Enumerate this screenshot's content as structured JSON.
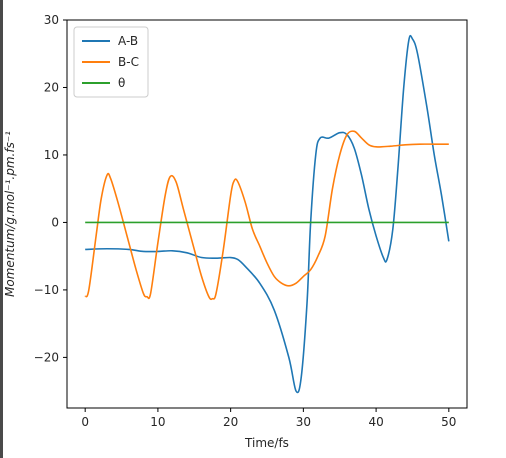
{
  "chart_data": {
    "type": "line",
    "title": "",
    "xlabel": "Time/fs",
    "ylabel": "Momentum/g.mol⁻¹.pm.fs⁻¹",
    "xlim": [
      -2.5,
      52.5
    ],
    "ylim": [
      -27.5,
      30
    ],
    "xticks": [
      0,
      10,
      20,
      30,
      40,
      50
    ],
    "yticks": [
      -20,
      -10,
      0,
      10,
      20,
      30
    ],
    "ytick_labels": [
      "−20",
      "−10",
      "0",
      "10",
      "20",
      "30"
    ],
    "grid": false,
    "legend_position": "top-left",
    "series": [
      {
        "name": "A-B",
        "color": "#1f77b4",
        "points": [
          [
            0,
            -4.0
          ],
          [
            3,
            -3.9
          ],
          [
            6,
            -4.0
          ],
          [
            8,
            -4.3
          ],
          [
            10,
            -4.3
          ],
          [
            12,
            -4.2
          ],
          [
            14,
            -4.5
          ],
          [
            16,
            -5.2
          ],
          [
            18,
            -5.3
          ],
          [
            20,
            -5.2
          ],
          [
            21,
            -5.5
          ],
          [
            22,
            -6.5
          ],
          [
            24,
            -9.0
          ],
          [
            26,
            -13.0
          ],
          [
            28,
            -20.0
          ],
          [
            29,
            -25.0
          ],
          [
            29.7,
            -23.0
          ],
          [
            30.5,
            -12.0
          ],
          [
            31,
            0.0
          ],
          [
            31.7,
            10.0
          ],
          [
            32.3,
            12.5
          ],
          [
            33.5,
            12.5
          ],
          [
            35,
            13.3
          ],
          [
            36,
            13.0
          ],
          [
            37,
            11.0
          ],
          [
            38,
            7.0
          ],
          [
            39,
            2.0
          ],
          [
            40,
            -2.0
          ],
          [
            41,
            -5.2
          ],
          [
            41.5,
            -5.5
          ],
          [
            42.3,
            -1.0
          ],
          [
            43,
            8.0
          ],
          [
            43.8,
            20.0
          ],
          [
            44.5,
            27.0
          ],
          [
            45,
            27.2
          ],
          [
            45.7,
            25.0
          ],
          [
            47,
            17.0
          ],
          [
            48,
            10.0
          ],
          [
            49,
            4.0
          ],
          [
            50,
            -2.8
          ]
        ]
      },
      {
        "name": "B-C",
        "color": "#ff7f0e",
        "points": [
          [
            0,
            -11.0
          ],
          [
            0.5,
            -10.0
          ],
          [
            1.5,
            -2.0
          ],
          [
            2.2,
            3.5
          ],
          [
            3.0,
            7.0
          ],
          [
            3.5,
            6.5
          ],
          [
            4.5,
            3.0
          ],
          [
            6,
            -3.0
          ],
          [
            7,
            -7.0
          ],
          [
            8,
            -10.5
          ],
          [
            8.5,
            -11.0
          ],
          [
            9,
            -10.5
          ],
          [
            10,
            -3.0
          ],
          [
            11,
            4.0
          ],
          [
            11.7,
            6.8
          ],
          [
            12.5,
            6.0
          ],
          [
            13.5,
            2.0
          ],
          [
            15,
            -4.0
          ],
          [
            16,
            -8.0
          ],
          [
            17,
            -11.0
          ],
          [
            17.5,
            -11.3
          ],
          [
            18,
            -10.5
          ],
          [
            19,
            -4.0
          ],
          [
            20,
            4.0
          ],
          [
            20.5,
            6.2
          ],
          [
            21,
            6.0
          ],
          [
            22,
            3.0
          ],
          [
            23,
            -1.0
          ],
          [
            24,
            -3.5
          ],
          [
            25,
            -6.0
          ],
          [
            26,
            -8.0
          ],
          [
            27,
            -9.0
          ],
          [
            28,
            -9.4
          ],
          [
            29,
            -9.0
          ],
          [
            30,
            -8.0
          ],
          [
            31,
            -7.0
          ],
          [
            32,
            -5.0
          ],
          [
            33,
            -2.0
          ],
          [
            34,
            5.0
          ],
          [
            35,
            10.0
          ],
          [
            36,
            13.0
          ],
          [
            37,
            13.5
          ],
          [
            38,
            12.5
          ],
          [
            39,
            11.5
          ],
          [
            40,
            11.2
          ],
          [
            42,
            11.3
          ],
          [
            44,
            11.5
          ],
          [
            46,
            11.6
          ],
          [
            48,
            11.6
          ],
          [
            50,
            11.6
          ]
        ]
      },
      {
        "name": "θ",
        "color": "#2ca02c",
        "points": [
          [
            0,
            0
          ],
          [
            50,
            0
          ]
        ]
      }
    ]
  }
}
